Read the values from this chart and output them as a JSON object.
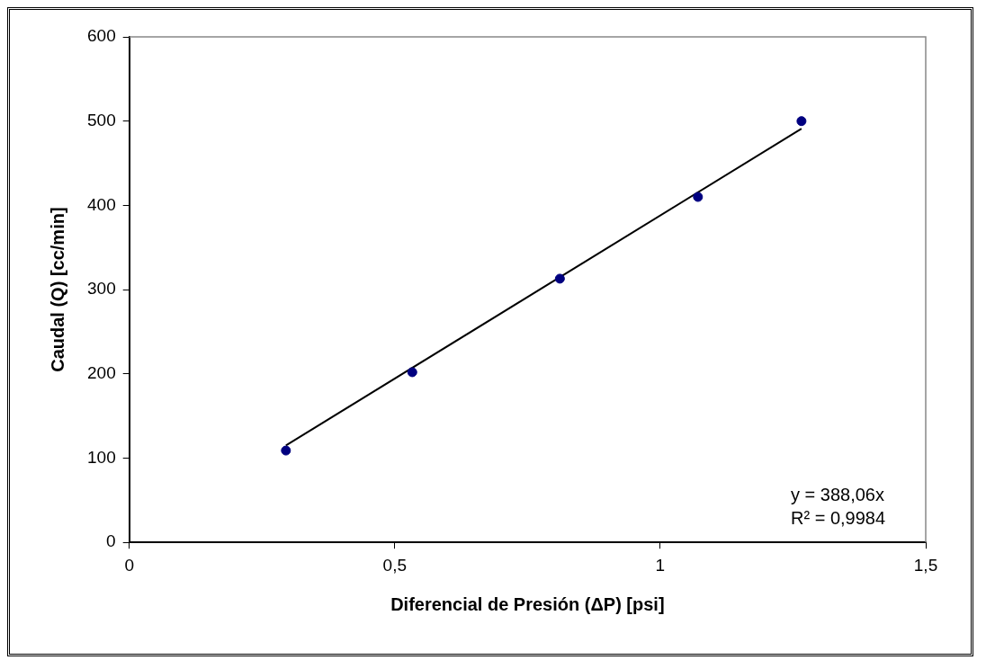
{
  "chart_data": {
    "type": "scatter",
    "xlabel": "Diferencial de Presión (ΔP) [psi]",
    "ylabel": "Caudal (Q) [cc/min]",
    "series": [
      {
        "color": "#000080",
        "x": [
          0.295,
          0.533,
          0.811,
          1.071,
          1.266
        ],
        "values": [
          109,
          202,
          313,
          410,
          500
        ],
        "marker": "circle"
      },
      {
        "type": "line",
        "color": "#000000",
        "x": [
          0.295,
          1.266
        ],
        "values": [
          115,
          491
        ],
        "marker": "none"
      }
    ],
    "grid": false,
    "legend": false,
    "xlim": [
      0,
      1.5
    ],
    "xticks": [
      0,
      {
        "value": 0.5,
        "label": "0,5"
      },
      1,
      {
        "value": 1.5,
        "label": "1,5"
      }
    ],
    "ylim": [
      0,
      600
    ],
    "yticks": [
      0,
      100,
      200,
      300,
      400,
      500,
      600
    ],
    "annotations": [
      "y = 388,06x",
      "R² = 0,9984"
    ]
  }
}
